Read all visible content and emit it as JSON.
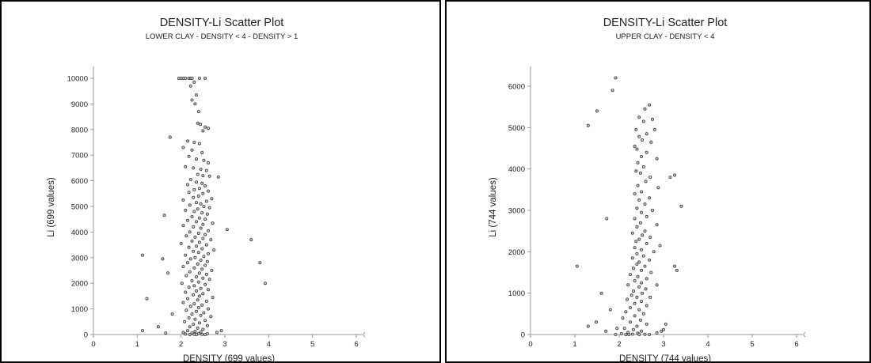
{
  "chart_data": [
    {
      "type": "scatter",
      "title": "DENSITY-Li Scatter Plot",
      "subtitle": "LOWER CLAY - DENSITY < 4 - DENSITY > 1",
      "xlabel": "DENSITY (699 values)",
      "ylabel": "Li (699 values)",
      "xlim": [
        0,
        6
      ],
      "ylim": [
        0,
        10000
      ],
      "xticks": [
        "0",
        "1",
        "2",
        "3",
        "4",
        "5",
        "6"
      ],
      "yticks": [
        "0",
        "1000",
        "2000",
        "3000",
        "4000",
        "5000",
        "6000",
        "7000",
        "8000",
        "9000",
        "10000"
      ],
      "ytick_values": [
        0,
        1000,
        2000,
        3000,
        4000,
        5000,
        6000,
        7000,
        8000,
        9000,
        10000
      ],
      "grid": false,
      "points": [
        [
          1.95,
          10000
        ],
        [
          2.0,
          10000
        ],
        [
          2.05,
          10000
        ],
        [
          2.1,
          10000
        ],
        [
          2.18,
          10000
        ],
        [
          2.22,
          10000
        ],
        [
          2.25,
          10000
        ],
        [
          2.42,
          10000
        ],
        [
          2.55,
          10000
        ],
        [
          2.3,
          9850
        ],
        [
          2.22,
          9700
        ],
        [
          2.35,
          9350
        ],
        [
          2.25,
          9150
        ],
        [
          2.32,
          9000
        ],
        [
          2.4,
          8700
        ],
        [
          2.38,
          8250
        ],
        [
          2.44,
          8200
        ],
        [
          2.55,
          8100
        ],
        [
          2.5,
          7950
        ],
        [
          2.62,
          8050
        ],
        [
          1.75,
          7700
        ],
        [
          2.15,
          7550
        ],
        [
          2.3,
          7500
        ],
        [
          2.42,
          7450
        ],
        [
          2.05,
          7300
        ],
        [
          2.25,
          7200
        ],
        [
          2.48,
          7100
        ],
        [
          2.18,
          6950
        ],
        [
          2.35,
          6850
        ],
        [
          2.52,
          6800
        ],
        [
          2.62,
          6700
        ],
        [
          2.1,
          6550
        ],
        [
          2.28,
          6500
        ],
        [
          2.45,
          6450
        ],
        [
          2.58,
          6400
        ],
        [
          2.38,
          6250
        ],
        [
          2.5,
          6200
        ],
        [
          2.65,
          6180
        ],
        [
          2.85,
          6150
        ],
        [
          2.22,
          6050
        ],
        [
          2.35,
          5950
        ],
        [
          2.48,
          5900
        ],
        [
          2.15,
          5850
        ],
        [
          2.55,
          5800
        ],
        [
          2.42,
          5700
        ],
        [
          2.3,
          5650
        ],
        [
          2.62,
          5600
        ],
        [
          2.18,
          5550
        ],
        [
          2.5,
          5500
        ],
        [
          2.4,
          5400
        ],
        [
          2.28,
          5350
        ],
        [
          2.7,
          5300
        ],
        [
          2.05,
          5250
        ],
        [
          2.58,
          5200
        ],
        [
          2.35,
          5150
        ],
        [
          2.45,
          5100
        ],
        [
          2.2,
          5050
        ],
        [
          2.52,
          5000
        ],
        [
          2.65,
          4950
        ],
        [
          2.38,
          4900
        ],
        [
          2.1,
          4850
        ],
        [
          2.3,
          4800
        ],
        [
          2.48,
          4750
        ],
        [
          2.6,
          4700
        ],
        [
          1.62,
          4650
        ],
        [
          2.25,
          4600
        ],
        [
          2.42,
          4550
        ],
        [
          2.55,
          4500
        ],
        [
          2.15,
          4450
        ],
        [
          2.35,
          4400
        ],
        [
          2.72,
          4350
        ],
        [
          2.5,
          4300
        ],
        [
          2.05,
          4250
        ],
        [
          2.28,
          4200
        ],
        [
          2.45,
          4150
        ],
        [
          3.05,
          4100
        ],
        [
          2.62,
          4050
        ],
        [
          2.2,
          4000
        ],
        [
          2.4,
          3950
        ],
        [
          2.55,
          3900
        ],
        [
          2.12,
          3850
        ],
        [
          2.32,
          3800
        ],
        [
          2.5,
          3750
        ],
        [
          3.6,
          3700
        ],
        [
          2.68,
          3700
        ],
        [
          2.25,
          3650
        ],
        [
          2.42,
          3600
        ],
        [
          2.0,
          3550
        ],
        [
          2.58,
          3500
        ],
        [
          2.35,
          3450
        ],
        [
          2.18,
          3400
        ],
        [
          2.48,
          3350
        ],
        [
          2.75,
          3300
        ],
        [
          2.28,
          3250
        ],
        [
          2.4,
          3200
        ],
        [
          2.62,
          3150
        ],
        [
          1.12,
          3100
        ],
        [
          2.1,
          3100
        ],
        [
          2.52,
          3050
        ],
        [
          2.32,
          3000
        ],
        [
          1.58,
          2950
        ],
        [
          2.22,
          2950
        ],
        [
          2.45,
          2900
        ],
        [
          2.6,
          2850
        ],
        [
          3.8,
          2800
        ],
        [
          2.15,
          2800
        ],
        [
          2.38,
          2750
        ],
        [
          2.55,
          2700
        ],
        [
          2.05,
          2650
        ],
        [
          2.3,
          2600
        ],
        [
          2.48,
          2550
        ],
        [
          2.7,
          2500
        ],
        [
          2.2,
          2450
        ],
        [
          2.42,
          2400
        ],
        [
          1.7,
          2400
        ],
        [
          2.58,
          2350
        ],
        [
          2.12,
          2300
        ],
        [
          2.35,
          2250
        ],
        [
          2.5,
          2200
        ],
        [
          2.65,
          2150
        ],
        [
          2.25,
          2100
        ],
        [
          2.4,
          2050
        ],
        [
          3.92,
          2000
        ],
        [
          2.02,
          2000
        ],
        [
          2.55,
          1950
        ],
        [
          2.3,
          1900
        ],
        [
          2.18,
          1850
        ],
        [
          2.45,
          1800
        ],
        [
          2.62,
          1750
        ],
        [
          2.35,
          1700
        ],
        [
          2.1,
          1650
        ],
        [
          2.5,
          1600
        ],
        [
          2.28,
          1550
        ],
        [
          2.42,
          1500
        ],
        [
          2.72,
          1450
        ],
        [
          1.22,
          1400
        ],
        [
          2.15,
          1400
        ],
        [
          2.38,
          1350
        ],
        [
          2.58,
          1300
        ],
        [
          2.05,
          1250
        ],
        [
          2.3,
          1200
        ],
        [
          2.48,
          1150
        ],
        [
          2.22,
          1100
        ],
        [
          2.4,
          1050
        ],
        [
          2.62,
          1000
        ],
        [
          2.12,
          950
        ],
        [
          2.35,
          900
        ],
        [
          2.52,
          850
        ],
        [
          1.8,
          800
        ],
        [
          2.25,
          800
        ],
        [
          2.45,
          750
        ],
        [
          2.68,
          700
        ],
        [
          2.18,
          650
        ],
        [
          2.32,
          600
        ],
        [
          2.55,
          550
        ],
        [
          2.08,
          500
        ],
        [
          2.42,
          450
        ],
        [
          2.28,
          400
        ],
        [
          2.6,
          350
        ],
        [
          1.48,
          300
        ],
        [
          2.2,
          300
        ],
        [
          2.38,
          250
        ],
        [
          2.5,
          200
        ],
        [
          1.12,
          150
        ],
        [
          2.15,
          150
        ],
        [
          2.32,
          120
        ],
        [
          2.45,
          100
        ],
        [
          2.05,
          80
        ],
        [
          2.25,
          60
        ],
        [
          2.4,
          40
        ],
        [
          2.6,
          30
        ],
        [
          2.1,
          20
        ],
        [
          2.3,
          10
        ],
        [
          2.48,
          5
        ],
        [
          2.92,
          150
        ],
        [
          2.82,
          80
        ],
        [
          1.65,
          60
        ],
        [
          2.2,
          0
        ],
        [
          2.35,
          0
        ],
        [
          2.55,
          0
        ]
      ]
    },
    {
      "type": "scatter",
      "title": "DENSITY-Li Scatter Plot",
      "subtitle": "UPPER CLAY - DENSITY < 4",
      "xlabel": "DENSITY (744 values)",
      "ylabel": "Li (744 values)",
      "xlim": [
        0,
        6
      ],
      "ylim": [
        0,
        6000
      ],
      "xticks": [
        "0",
        "1",
        "2",
        "3",
        "4",
        "5",
        "6"
      ],
      "yticks": [
        "0",
        "1000",
        "2000",
        "3000",
        "4000",
        "5000",
        "6000"
      ],
      "ytick_values": [
        0,
        1000,
        2000,
        3000,
        4000,
        5000,
        6000
      ],
      "grid": false,
      "points": [
        [
          1.92,
          6200
        ],
        [
          1.85,
          5900
        ],
        [
          2.68,
          5550
        ],
        [
          2.58,
          5450
        ],
        [
          1.5,
          5400
        ],
        [
          2.45,
          5250
        ],
        [
          2.75,
          5200
        ],
        [
          2.55,
          5150
        ],
        [
          1.3,
          5050
        ],
        [
          2.38,
          4950
        ],
        [
          2.8,
          4950
        ],
        [
          2.62,
          4850
        ],
        [
          2.45,
          4780
        ],
        [
          2.52,
          4700
        ],
        [
          2.72,
          4650
        ],
        [
          2.35,
          4550
        ],
        [
          2.4,
          4480
        ],
        [
          2.62,
          4400
        ],
        [
          2.5,
          4300
        ],
        [
          2.85,
          4250
        ],
        [
          2.42,
          4150
        ],
        [
          3.25,
          3850
        ],
        [
          3.15,
          3800
        ],
        [
          2.55,
          4050
        ],
        [
          2.38,
          3950
        ],
        [
          2.48,
          3900
        ],
        [
          2.7,
          3800
        ],
        [
          2.6,
          3700
        ],
        [
          2.42,
          3600
        ],
        [
          2.88,
          3550
        ],
        [
          2.5,
          3450
        ],
        [
          2.35,
          3400
        ],
        [
          2.68,
          3300
        ],
        [
          3.4,
          3100
        ],
        [
          2.45,
          3250
        ],
        [
          2.58,
          3150
        ],
        [
          2.4,
          3050
        ],
        [
          2.75,
          3000
        ],
        [
          2.5,
          2950
        ],
        [
          2.62,
          2850
        ],
        [
          1.72,
          2800
        ],
        [
          2.35,
          2800
        ],
        [
          2.48,
          2700
        ],
        [
          2.85,
          2650
        ],
        [
          2.4,
          2600
        ],
        [
          2.58,
          2500
        ],
        [
          2.3,
          2450
        ],
        [
          2.52,
          2400
        ],
        [
          2.7,
          2350
        ],
        [
          2.45,
          2300
        ],
        [
          2.38,
          2250
        ],
        [
          2.62,
          2200
        ],
        [
          2.92,
          2150
        ],
        [
          2.35,
          2100
        ],
        [
          2.5,
          2050
        ],
        [
          2.78,
          2000
        ],
        [
          2.4,
          1950
        ],
        [
          2.55,
          1900
        ],
        [
          2.3,
          1850
        ],
        [
          2.68,
          1800
        ],
        [
          1.05,
          1650
        ],
        [
          2.45,
          1750
        ],
        [
          3.25,
          1650
        ],
        [
          3.3,
          1550
        ],
        [
          2.4,
          1700
        ],
        [
          2.58,
          1650
        ],
        [
          2.32,
          1600
        ],
        [
          2.5,
          1550
        ],
        [
          2.72,
          1500
        ],
        [
          2.25,
          1450
        ],
        [
          2.42,
          1400
        ],
        [
          2.62,
          1350
        ],
        [
          2.35,
          1300
        ],
        [
          2.5,
          1250
        ],
        [
          2.2,
          1200
        ],
        [
          2.85,
          1200
        ],
        [
          2.45,
          1150
        ],
        [
          2.6,
          1100
        ],
        [
          2.32,
          1050
        ],
        [
          2.52,
          1000
        ],
        [
          1.6,
          1000
        ],
        [
          2.28,
          950
        ],
        [
          2.4,
          900
        ],
        [
          2.7,
          900
        ],
        [
          2.18,
          850
        ],
        [
          2.5,
          800
        ],
        [
          2.35,
          750
        ],
        [
          2.62,
          700
        ],
        [
          2.25,
          650
        ],
        [
          2.45,
          600
        ],
        [
          1.8,
          600
        ],
        [
          2.15,
          550
        ],
        [
          2.55,
          500
        ],
        [
          2.35,
          450
        ],
        [
          2.08,
          400
        ],
        [
          2.48,
          350
        ],
        [
          2.25,
          300
        ],
        [
          1.48,
          300
        ],
        [
          2.62,
          250
        ],
        [
          2.4,
          200
        ],
        [
          1.3,
          200
        ],
        [
          2.12,
          150
        ],
        [
          2.32,
          120
        ],
        [
          2.5,
          80
        ],
        [
          2.2,
          50
        ],
        [
          2.42,
          30
        ],
        [
          2.05,
          20
        ],
        [
          2.3,
          10
        ],
        [
          2.58,
          5
        ],
        [
          1.92,
          0
        ],
        [
          2.22,
          0
        ],
        [
          2.45,
          0
        ],
        [
          2.68,
          0
        ],
        [
          3.0,
          120
        ],
        [
          3.05,
          250
        ],
        [
          2.95,
          80
        ],
        [
          1.7,
          80
        ],
        [
          1.95,
          150
        ],
        [
          2.85,
          40
        ],
        [
          2.15,
          0
        ]
      ]
    }
  ]
}
